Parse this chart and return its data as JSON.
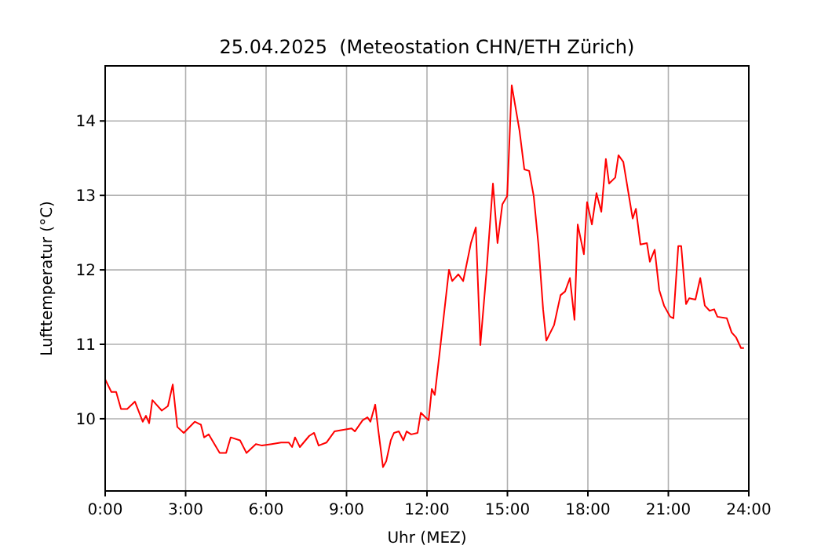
{
  "chart_data": {
    "type": "line",
    "title": "25.04.2025  (Meteostation CHN/ETH Zürich)",
    "xlabel": "Uhr (MEZ)",
    "ylabel": "Lufttemperatur (°C)",
    "xlim": [
      0,
      24
    ],
    "xticks": [
      {
        "value": 0,
        "label": "0:00"
      },
      {
        "value": 3,
        "label": "3:00"
      },
      {
        "value": 6,
        "label": "6:00"
      },
      {
        "value": 9,
        "label": "9:00"
      },
      {
        "value": 12,
        "label": "12:00"
      },
      {
        "value": 15,
        "label": "15:00"
      },
      {
        "value": 18,
        "label": "18:00"
      },
      {
        "value": 21,
        "label": "21:00"
      },
      {
        "value": 24,
        "label": "24:00"
      }
    ],
    "ylim": [
      9.03,
      14.74
    ],
    "yticks": [
      10,
      11,
      12,
      13,
      14
    ],
    "grid": true,
    "series": [
      {
        "color": "#ff0000",
        "x": [
          0,
          0.23,
          0.41,
          0.59,
          0.82,
          1.11,
          1.4,
          1.52,
          1.64,
          1.76,
          2.11,
          2.34,
          2.52,
          2.69,
          2.93,
          3.34,
          3.57,
          3.69,
          3.86,
          4.04,
          4.27,
          4.51,
          4.68,
          5.03,
          5.27,
          5.62,
          5.85,
          6.21,
          6.56,
          6.85,
          6.97,
          7.08,
          7.26,
          7.61,
          7.79,
          7.96,
          8.25,
          8.55,
          8.84,
          9.19,
          9.31,
          9.6,
          9.78,
          9.89,
          10.07,
          10.19,
          10.36,
          10.48,
          10.65,
          10.77,
          10.95,
          11.12,
          11.24,
          11.41,
          11.65,
          11.77,
          11.94,
          12.06,
          12.18,
          12.29,
          12.47,
          12.82,
          12.94,
          13.17,
          13.35,
          13.64,
          13.82,
          13.99,
          14.22,
          14.46,
          14.63,
          14.81,
          14.99,
          15.16,
          15.45,
          15.63,
          15.81,
          15.98,
          16.16,
          16.33,
          16.45,
          16.74,
          16.98,
          17.15,
          17.33,
          17.5,
          17.62,
          17.85,
          17.97,
          18.15,
          18.32,
          18.5,
          18.67,
          18.79,
          19.02,
          19.14,
          19.32,
          19.67,
          19.79,
          19.96,
          20.2,
          20.31,
          20.49,
          20.66,
          20.84,
          21.07,
          21.19,
          21.37,
          21.48,
          21.66,
          21.78,
          22.01,
          22.19,
          22.36,
          22.54,
          22.71,
          22.83,
          23.18,
          23.36,
          23.53,
          23.71,
          23.82
        ],
        "values": [
          10.53,
          10.36,
          10.36,
          10.13,
          10.13,
          10.23,
          9.96,
          10.04,
          9.94,
          10.25,
          10.11,
          10.17,
          10.46,
          9.89,
          9.81,
          9.96,
          9.92,
          9.75,
          9.79,
          9.68,
          9.54,
          9.54,
          9.75,
          9.71,
          9.54,
          9.66,
          9.64,
          9.66,
          9.68,
          9.68,
          9.62,
          9.75,
          9.62,
          9.77,
          9.81,
          9.64,
          9.68,
          9.83,
          9.85,
          9.87,
          9.83,
          9.98,
          10.02,
          9.96,
          10.19,
          9.83,
          9.35,
          9.43,
          9.71,
          9.81,
          9.83,
          9.71,
          9.83,
          9.79,
          9.81,
          10.08,
          10.02,
          9.98,
          10.4,
          10.32,
          10.88,
          12.0,
          11.85,
          11.94,
          11.85,
          12.36,
          12.57,
          10.99,
          11.98,
          13.16,
          12.36,
          12.88,
          12.99,
          14.48,
          13.87,
          13.35,
          13.33,
          12.99,
          12.32,
          11.47,
          11.05,
          11.26,
          11.66,
          11.71,
          11.89,
          11.33,
          12.61,
          12.21,
          12.91,
          12.61,
          13.03,
          12.78,
          13.49,
          13.16,
          13.24,
          13.54,
          13.45,
          12.69,
          12.82,
          12.34,
          12.36,
          12.11,
          12.27,
          11.73,
          11.52,
          11.37,
          11.35,
          12.32,
          12.32,
          11.54,
          11.62,
          11.6,
          11.89,
          11.52,
          11.45,
          11.47,
          11.37,
          11.35,
          11.16,
          11.09,
          10.95,
          10.95
        ]
      }
    ]
  }
}
